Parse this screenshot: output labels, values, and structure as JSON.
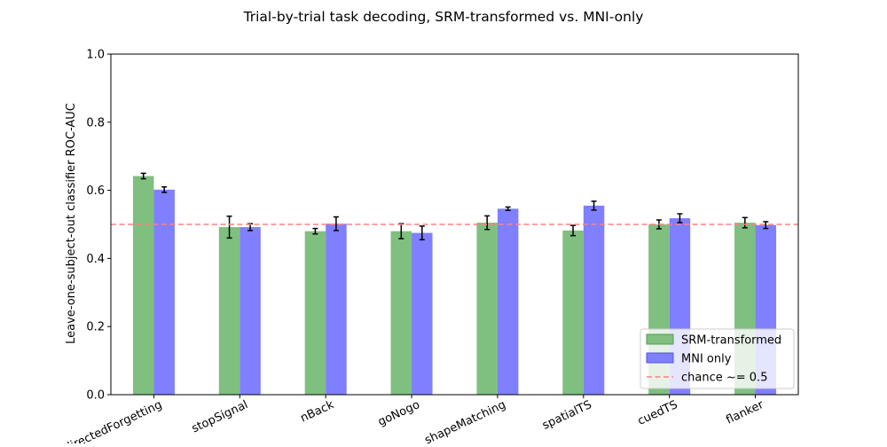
{
  "chart_data": {
    "type": "bar",
    "title": "Trial-by-trial task decoding, SRM-transformed vs. MNI-only",
    "xlabel": "",
    "ylabel": "Leave-one-subject-out classifier ROC-AUC",
    "ylim": [
      0.0,
      1.0
    ],
    "yticks": [
      "0.0",
      "0.2",
      "0.4",
      "0.6",
      "0.8",
      "1.0"
    ],
    "categories": [
      "directedForgetting",
      "stopSignal",
      "nBack",
      "goNogo",
      "shapeMatching",
      "spatialTS",
      "cuedTS",
      "flanker"
    ],
    "series": [
      {
        "name": "SRM-transformed",
        "color": "#7fbf7f",
        "edge": "#4f9f4f",
        "values": [
          0.642,
          0.492,
          0.48,
          0.48,
          0.505,
          0.482,
          0.5,
          0.505
        ],
        "errors": [
          0.008,
          0.032,
          0.008,
          0.022,
          0.02,
          0.015,
          0.013,
          0.015
        ]
      },
      {
        "name": "MNI only",
        "color": "#7f7fff",
        "edge": "#5555dd",
        "values": [
          0.602,
          0.492,
          0.502,
          0.475,
          0.546,
          0.555,
          0.518,
          0.498
        ],
        "errors": [
          0.008,
          0.01,
          0.02,
          0.02,
          0.005,
          0.013,
          0.013,
          0.01
        ]
      }
    ],
    "reference_line": {
      "label": "chance ~= 0.5",
      "value": 0.5,
      "color": "#ff8080",
      "style": "dashed"
    },
    "legend": {
      "position": "bottom-right"
    },
    "grid": false
  }
}
